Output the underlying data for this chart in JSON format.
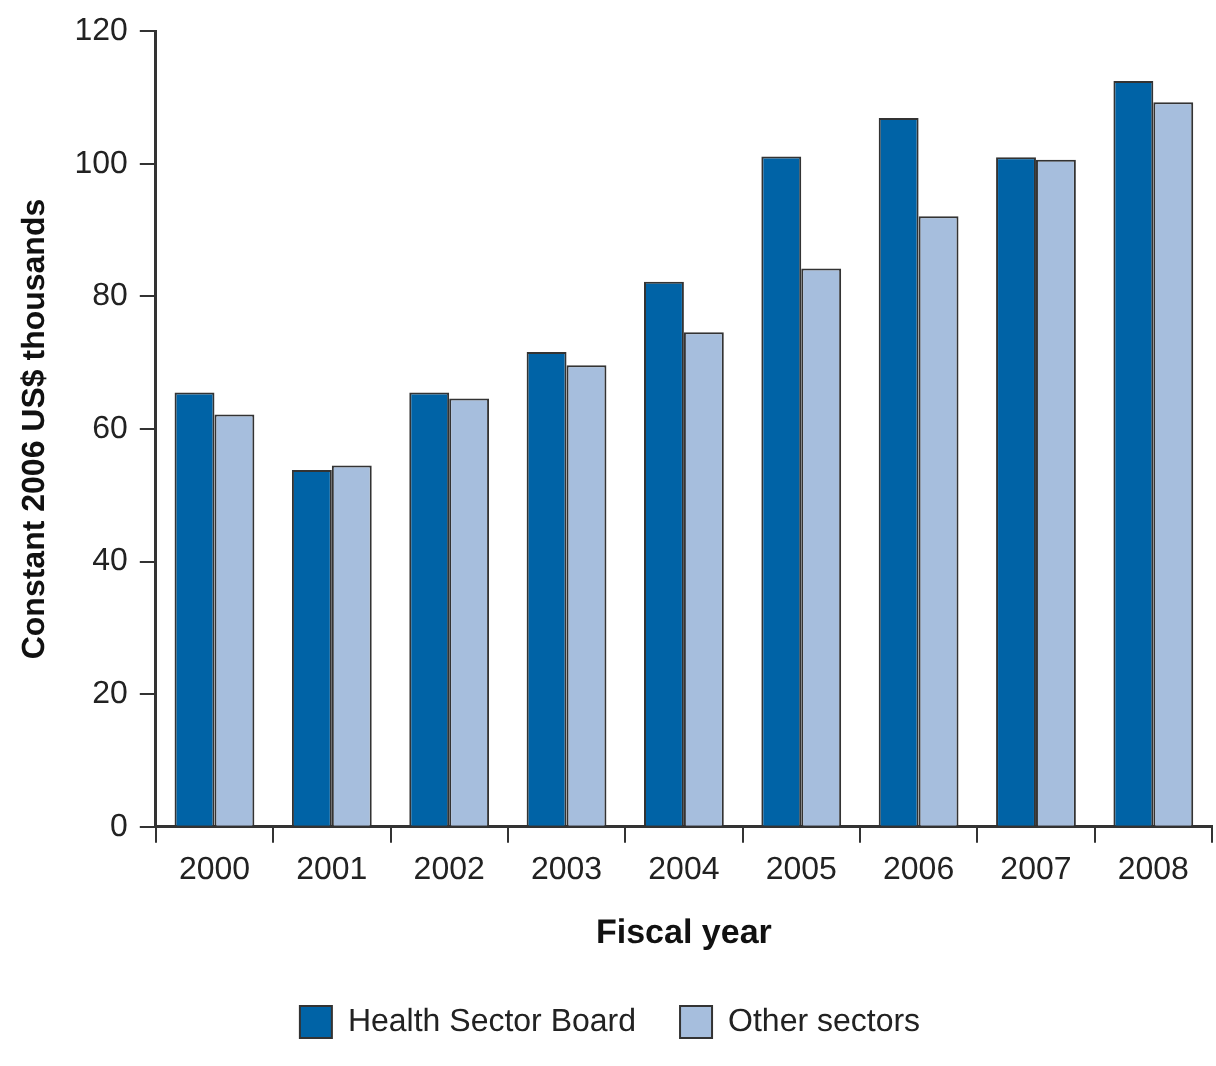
{
  "chart_data": {
    "type": "bar",
    "xlabel": "Fiscal year",
    "ylabel": "Constant 2006 US$ thousands",
    "categories": [
      "2000",
      "2001",
      "2002",
      "2003",
      "2004",
      "2005",
      "2006",
      "2007",
      "2008"
    ],
    "series": [
      {
        "name": "Health Sector Board",
        "color": "#0063a6",
        "values": [
          65.5,
          53.8,
          65.5,
          71.6,
          82.2,
          101.1,
          106.9,
          101.0,
          112.5
        ]
      },
      {
        "name": "Other sectors",
        "color": "#a6bedd",
        "values": [
          62.2,
          54.5,
          64.6,
          69.6,
          74.6,
          84.2,
          92.1,
          100.6,
          109.3
        ]
      }
    ],
    "ylim": [
      0,
      120
    ],
    "yticks": [
      0,
      20,
      40,
      60,
      80,
      100,
      120
    ],
    "grid": false,
    "legend": "bottom"
  }
}
